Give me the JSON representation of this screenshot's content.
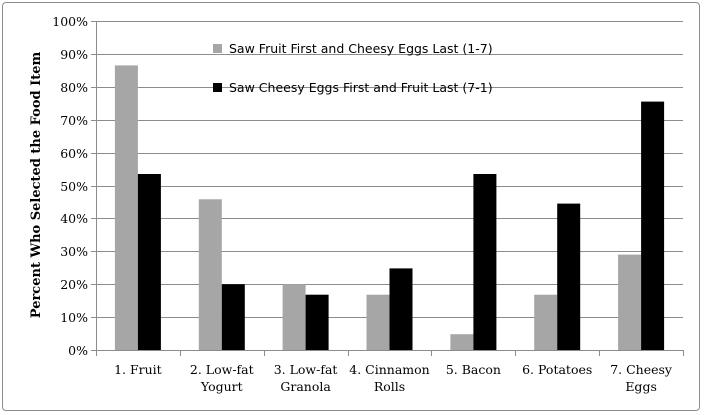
{
  "chart_data": {
    "type": "bar",
    "title": "",
    "xlabel": "",
    "ylabel": "Percent Who Selected the Food Item",
    "ylim": [
      0,
      100
    ],
    "yticks": [
      "0%",
      "10%",
      "20%",
      "30%",
      "40%",
      "50%",
      "60%",
      "70%",
      "80%",
      "90%",
      "100%"
    ],
    "categories": [
      [
        "1. Fruit"
      ],
      [
        "2. Low-fat",
        "Yogurt"
      ],
      [
        "3. Low-fat",
        "Granola"
      ],
      [
        "4. Cinnamon",
        "Rolls"
      ],
      [
        "5. Bacon"
      ],
      [
        "6. Potatoes"
      ],
      [
        "7. Cheesy",
        "Eggs"
      ]
    ],
    "series": [
      {
        "name": "Saw Fruit First and Cheesy Eggs Last (1-7)",
        "color": "#a6a6a6",
        "values": [
          86.5,
          45.8,
          20.0,
          16.8,
          4.8,
          16.8,
          29.0
        ]
      },
      {
        "name": "Saw Cheesy Eggs First and Fruit Last (7-1)",
        "color": "#000000",
        "values": [
          53.5,
          20.0,
          16.8,
          24.8,
          53.5,
          44.5,
          75.5
        ]
      }
    ],
    "grid": true,
    "legend_position": "top-center"
  }
}
